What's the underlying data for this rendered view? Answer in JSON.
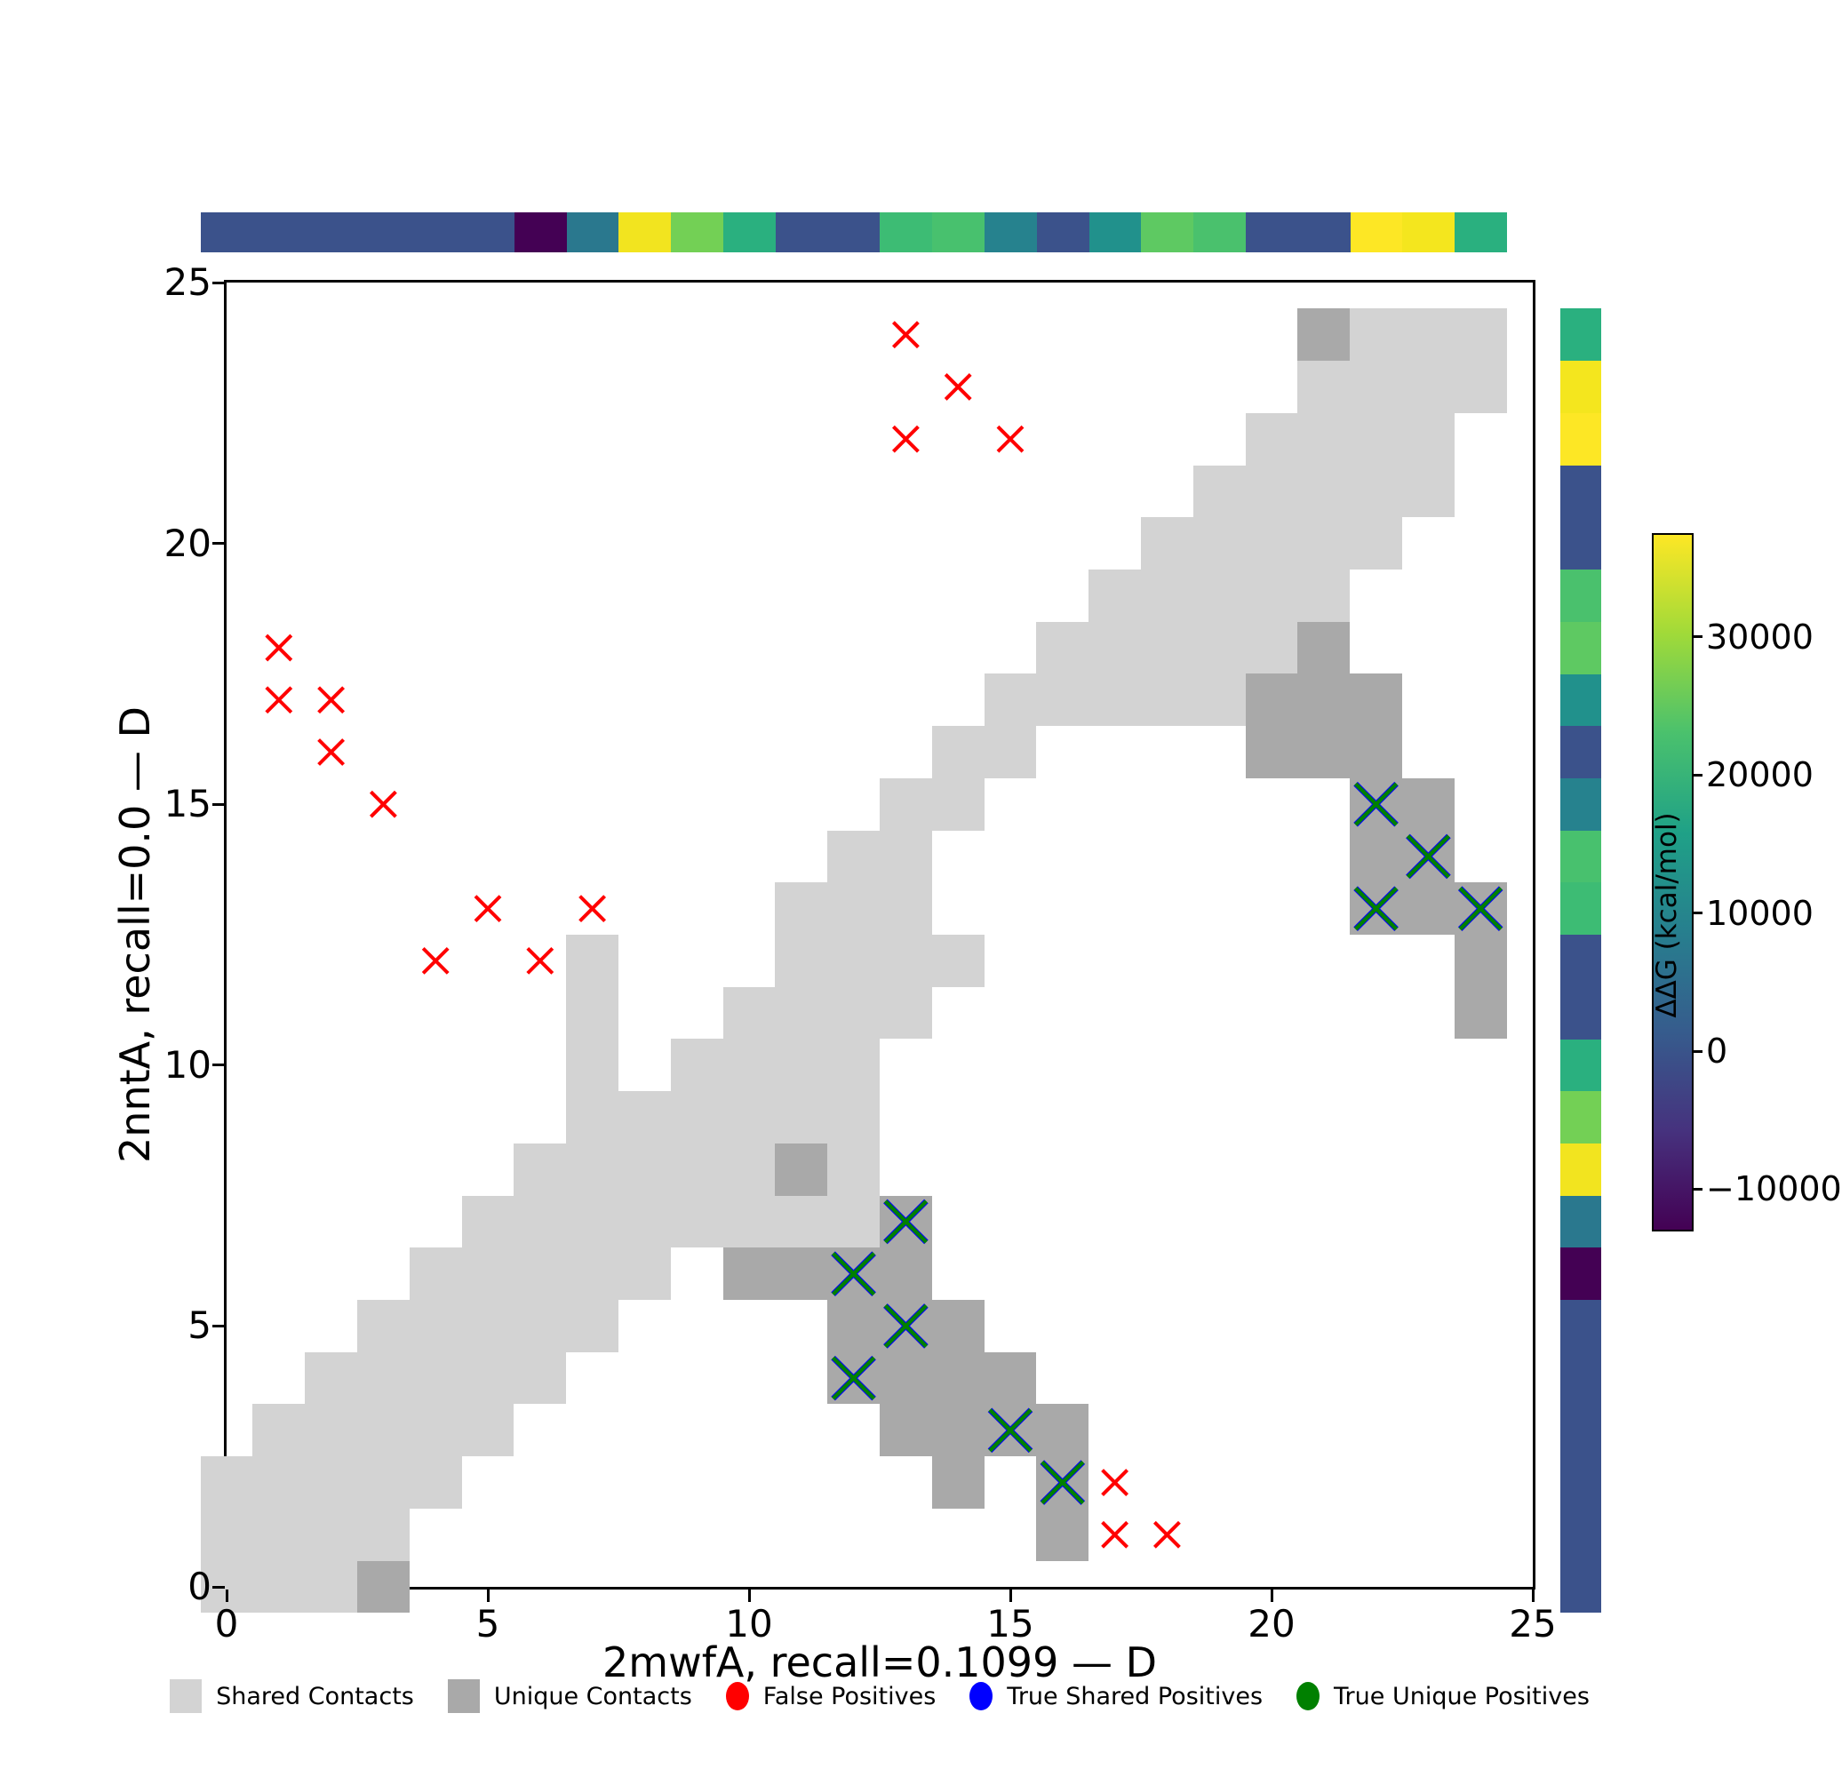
{
  "figure": {
    "x_axis": {
      "label": "2mwfA, recall=0.1099 — D",
      "ticks": [
        0,
        5,
        10,
        15,
        20,
        25
      ],
      "range": [
        0,
        25
      ]
    },
    "y_axis": {
      "label": "2nntA, recall=0.0 — D",
      "ticks": [
        0,
        5,
        10,
        15,
        20,
        25
      ],
      "range": [
        0,
        25
      ]
    },
    "colorbar": {
      "label": "ΔΔG (kcal/mol)",
      "ticks": [
        30000,
        20000,
        10000,
        0,
        -10000
      ]
    },
    "legend": {
      "items": [
        {
          "label": "Shared Contacts",
          "color": "#d3d3d3",
          "shape": "square"
        },
        {
          "label": "Unique Contacts",
          "color": "#a9a9a9",
          "shape": "square"
        },
        {
          "label": "False Positives",
          "color": "#ff0000",
          "shape": "circle"
        },
        {
          "label": "True Shared Positives",
          "color": "#0000ff",
          "shape": "circle"
        },
        {
          "label": "True Unique Positives",
          "color": "#008000",
          "shape": "circle"
        }
      ]
    }
  },
  "chart_data": {
    "type": "heatmap",
    "title": "",
    "xlabel": "2mwfA, recall=0.1099 — D",
    "ylabel": "2nntA, recall=0.0 — D",
    "x_ticks": [
      0,
      5,
      10,
      15,
      20,
      25
    ],
    "y_ticks": [
      0,
      5,
      10,
      15,
      20,
      25
    ],
    "xlim": [
      0,
      25
    ],
    "ylim": [
      0,
      25
    ],
    "grid": false,
    "legend_position": "bottom",
    "shared_contacts_color": "#d3d3d3",
    "unique_contacts_color": "#a9a9a9",
    "false_positive_color": "#ff0000",
    "true_shared_positive_color": "#0000ff",
    "true_unique_positive_color": "#008000",
    "shared_contacts": [
      [
        0,
        0
      ],
      [
        1,
        0
      ],
      [
        2,
        0
      ],
      [
        0,
        1
      ],
      [
        1,
        1
      ],
      [
        2,
        1
      ],
      [
        3,
        1
      ],
      [
        0,
        2
      ],
      [
        1,
        2
      ],
      [
        2,
        2
      ],
      [
        3,
        2
      ],
      [
        4,
        2
      ],
      [
        1,
        3
      ],
      [
        2,
        3
      ],
      [
        3,
        3
      ],
      [
        4,
        3
      ],
      [
        5,
        3
      ],
      [
        2,
        4
      ],
      [
        3,
        4
      ],
      [
        4,
        4
      ],
      [
        5,
        4
      ],
      [
        6,
        4
      ],
      [
        3,
        5
      ],
      [
        4,
        5
      ],
      [
        5,
        5
      ],
      [
        6,
        5
      ],
      [
        7,
        5
      ],
      [
        4,
        6
      ],
      [
        5,
        6
      ],
      [
        6,
        6
      ],
      [
        7,
        6
      ],
      [
        8,
        6
      ],
      [
        5,
        7
      ],
      [
        6,
        7
      ],
      [
        7,
        7
      ],
      [
        8,
        7
      ],
      [
        9,
        7
      ],
      [
        10,
        7
      ],
      [
        11,
        7
      ],
      [
        12,
        7
      ],
      [
        6,
        8
      ],
      [
        7,
        8
      ],
      [
        8,
        8
      ],
      [
        9,
        8
      ],
      [
        10,
        8
      ],
      [
        12,
        8
      ],
      [
        7,
        9
      ],
      [
        8,
        9
      ],
      [
        9,
        9
      ],
      [
        10,
        9
      ],
      [
        11,
        9
      ],
      [
        12,
        9
      ],
      [
        7,
        10
      ],
      [
        9,
        10
      ],
      [
        10,
        10
      ],
      [
        11,
        10
      ],
      [
        12,
        10
      ],
      [
        7,
        11
      ],
      [
        10,
        11
      ],
      [
        11,
        11
      ],
      [
        12,
        11
      ],
      [
        13,
        11
      ],
      [
        7,
        12
      ],
      [
        11,
        12
      ],
      [
        12,
        12
      ],
      [
        13,
        12
      ],
      [
        14,
        12
      ],
      [
        11,
        13
      ],
      [
        12,
        13
      ],
      [
        13,
        13
      ],
      [
        12,
        14
      ],
      [
        13,
        14
      ],
      [
        13,
        15
      ],
      [
        14,
        15
      ],
      [
        14,
        16
      ],
      [
        15,
        16
      ],
      [
        15,
        17
      ],
      [
        16,
        17
      ],
      [
        17,
        17
      ],
      [
        18,
        17
      ],
      [
        19,
        17
      ],
      [
        16,
        18
      ],
      [
        17,
        18
      ],
      [
        18,
        18
      ],
      [
        19,
        18
      ],
      [
        20,
        18
      ],
      [
        17,
        19
      ],
      [
        18,
        19
      ],
      [
        19,
        19
      ],
      [
        20,
        19
      ],
      [
        21,
        19
      ],
      [
        18,
        20
      ],
      [
        19,
        20
      ],
      [
        20,
        20
      ],
      [
        21,
        20
      ],
      [
        22,
        20
      ],
      [
        19,
        21
      ],
      [
        20,
        21
      ],
      [
        21,
        21
      ],
      [
        22,
        21
      ],
      [
        23,
        21
      ],
      [
        20,
        22
      ],
      [
        21,
        22
      ],
      [
        22,
        22
      ],
      [
        23,
        22
      ],
      [
        21,
        23
      ],
      [
        22,
        23
      ],
      [
        23,
        23
      ],
      [
        24,
        23
      ],
      [
        22,
        24
      ],
      [
        23,
        24
      ],
      [
        24,
        24
      ]
    ],
    "unique_contacts": [
      [
        3,
        0
      ],
      [
        16,
        1
      ],
      [
        14,
        2
      ],
      [
        16,
        2
      ],
      [
        13,
        3
      ],
      [
        14,
        3
      ],
      [
        15,
        3
      ],
      [
        16,
        3
      ],
      [
        12,
        4
      ],
      [
        13,
        4
      ],
      [
        14,
        4
      ],
      [
        15,
        4
      ],
      [
        12,
        5
      ],
      [
        13,
        5
      ],
      [
        14,
        5
      ],
      [
        10,
        6
      ],
      [
        11,
        6
      ],
      [
        12,
        6
      ],
      [
        13,
        6
      ],
      [
        13,
        7
      ],
      [
        11,
        8
      ],
      [
        24,
        11
      ],
      [
        24,
        12
      ],
      [
        22,
        13
      ],
      [
        23,
        13
      ],
      [
        24,
        13
      ],
      [
        22,
        14
      ],
      [
        23,
        14
      ],
      [
        22,
        15
      ],
      [
        23,
        15
      ],
      [
        20,
        16
      ],
      [
        21,
        16
      ],
      [
        22,
        16
      ],
      [
        20,
        17
      ],
      [
        21,
        17
      ],
      [
        22,
        17
      ],
      [
        21,
        18
      ],
      [
        21,
        24
      ]
    ],
    "false_positives": [
      [
        1,
        18
      ],
      [
        1,
        17
      ],
      [
        2,
        17
      ],
      [
        2,
        16
      ],
      [
        3,
        15
      ],
      [
        5,
        13
      ],
      [
        7,
        13
      ],
      [
        4,
        12
      ],
      [
        6,
        12
      ],
      [
        13,
        24
      ],
      [
        14,
        23
      ],
      [
        13,
        22
      ],
      [
        15,
        22
      ],
      [
        17,
        2
      ],
      [
        17,
        1
      ],
      [
        18,
        1
      ]
    ],
    "true_shared_positives": [
      [
        12,
        6
      ],
      [
        13,
        7
      ],
      [
        13,
        5
      ],
      [
        12,
        4
      ],
      [
        15,
        3
      ],
      [
        16,
        2
      ],
      [
        22,
        15
      ],
      [
        23,
        14
      ],
      [
        22,
        13
      ],
      [
        24,
        13
      ]
    ],
    "true_unique_positives": [
      [
        12,
        6
      ],
      [
        13,
        7
      ],
      [
        13,
        5
      ],
      [
        12,
        4
      ],
      [
        15,
        3
      ],
      [
        16,
        2
      ],
      [
        22,
        15
      ],
      [
        23,
        14
      ],
      [
        22,
        13
      ],
      [
        24,
        13
      ]
    ],
    "residue_strip_colors": [
      "#3b528b",
      "#3b528b",
      "#3b528b",
      "#3b528b",
      "#3b528b",
      "#3b528b",
      "#440154",
      "#2a788e",
      "#f2e41f",
      "#73d055",
      "#2ab07f",
      "#3b528b",
      "#3b528b",
      "#3dbc74",
      "#48c16e",
      "#26828e",
      "#3b528b",
      "#21918c",
      "#5ec962",
      "#4ac16d",
      "#3b528b",
      "#3b528b",
      "#fde725",
      "#f4e61e",
      "#2ab07f"
    ],
    "colorbar": {
      "label": "ΔΔG (kcal/mol)",
      "ticks": [
        30000,
        20000,
        10000,
        0,
        -10000
      ],
      "vmax": 37500,
      "vmin": -12800,
      "gradient_top_to_bottom": [
        "#fde725",
        "#a0da39",
        "#4ac16d",
        "#1fa187",
        "#277f8e",
        "#365c8d",
        "#46327e",
        "#440154"
      ]
    }
  }
}
